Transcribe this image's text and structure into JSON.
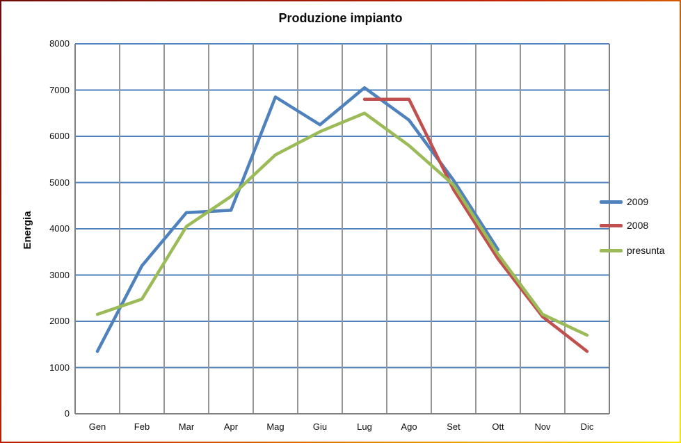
{
  "title": "Produzione impianto",
  "frame": {
    "border_gradient": [
      "#6d0b0b",
      "#c42300",
      "#ffe800"
    ],
    "background": "#ffffff"
  },
  "y_axis": {
    "label": "Energia",
    "tick_labels": [
      "0",
      "1000",
      "2000",
      "3000",
      "4000",
      "5000",
      "6000",
      "7000",
      "8000"
    ]
  },
  "x_axis": {
    "tick_labels": [
      "Gen",
      "Feb",
      "Mar",
      "Apr",
      "Mag",
      "Giu",
      "Lug",
      "Ago",
      "Set",
      "Ott",
      "Nov",
      "Dic"
    ]
  },
  "legend": {
    "position": "right",
    "entries": [
      {
        "label": "2009",
        "color": "#4F81BD"
      },
      {
        "label": "2008",
        "color": "#C0504D"
      },
      {
        "label": "presunta",
        "color": "#9BBB59"
      }
    ]
  },
  "chart_data": {
    "type": "line",
    "title": "Produzione impianto",
    "xlabel": "",
    "ylabel": "Energia",
    "ylim": [
      0,
      8000
    ],
    "y_tick_step": 1000,
    "grid": {
      "horizontal": true,
      "vertical": true,
      "horizontal_color": "#4F81BD",
      "vertical_color": "#969696",
      "axis_color": "#808080"
    },
    "legend_position": "right",
    "categories": [
      "Gen",
      "Feb",
      "Mar",
      "Apr",
      "Mag",
      "Giu",
      "Lug",
      "Ago",
      "Set",
      "Ott",
      "Nov",
      "Dic"
    ],
    "series": [
      {
        "name": "2009",
        "color": "#4F81BD",
        "values": [
          1350,
          3200,
          4350,
          4400,
          6850,
          6250,
          7050,
          6350,
          5050,
          3550,
          null,
          null
        ]
      },
      {
        "name": "2008",
        "color": "#C0504D",
        "values": [
          null,
          null,
          null,
          null,
          null,
          null,
          6800,
          6800,
          4850,
          3350,
          2100,
          1350
        ]
      },
      {
        "name": "presunta",
        "color": "#9BBB59",
        "values": [
          2150,
          2480,
          4050,
          4700,
          5600,
          6100,
          6500,
          5800,
          4950,
          3450,
          2150,
          1700
        ]
      }
    ]
  }
}
